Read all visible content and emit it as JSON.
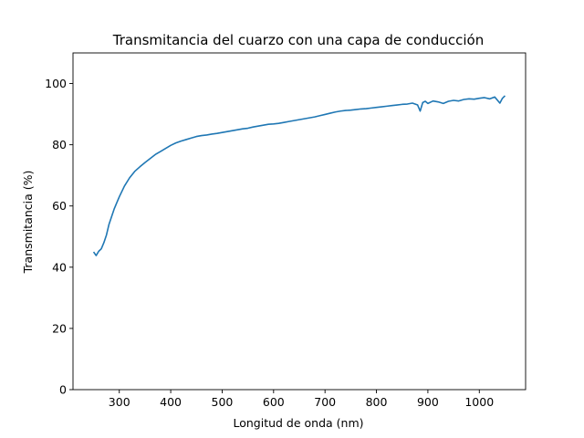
{
  "chart_data": {
    "type": "line",
    "title": "Transmitancia del cuarzo con una capa de conducción",
    "xlabel": "Longitud de onda (nm)",
    "ylabel": "Transmitancia (%)",
    "xlim": [
      210,
      1090
    ],
    "ylim": [
      0,
      110
    ],
    "xticks": [
      300,
      400,
      500,
      600,
      700,
      800,
      900,
      1000
    ],
    "yticks": [
      0,
      20,
      40,
      60,
      80,
      100
    ],
    "grid": false,
    "series_color": "#1f77b4",
    "series": [
      {
        "x": [
          250,
          255,
          260,
          265,
          270,
          275,
          280,
          285,
          290,
          295,
          300,
          310,
          320,
          330,
          340,
          350,
          360,
          370,
          380,
          390,
          400,
          410,
          420,
          430,
          440,
          450,
          460,
          470,
          480,
          490,
          500,
          510,
          520,
          530,
          540,
          550,
          560,
          570,
          580,
          590,
          600,
          610,
          620,
          630,
          640,
          650,
          660,
          670,
          680,
          690,
          700,
          710,
          720,
          730,
          740,
          750,
          760,
          770,
          780,
          790,
          800,
          810,
          820,
          830,
          840,
          850,
          860,
          870,
          880,
          885,
          890,
          895,
          900,
          910,
          920,
          930,
          940,
          950,
          960,
          970,
          980,
          990,
          1000,
          1010,
          1020,
          1030,
          1040,
          1045,
          1050
        ],
        "y": [
          45.0,
          43.8,
          45.2,
          46.0,
          48.0,
          50.5,
          54.0,
          56.5,
          59.0,
          61.0,
          63.0,
          66.5,
          69.2,
          71.3,
          72.8,
          74.2,
          75.5,
          76.8,
          77.8,
          78.8,
          79.8,
          80.6,
          81.2,
          81.7,
          82.2,
          82.7,
          83.0,
          83.2,
          83.5,
          83.7,
          84.0,
          84.3,
          84.6,
          84.9,
          85.2,
          85.4,
          85.8,
          86.1,
          86.4,
          86.7,
          86.8,
          87.0,
          87.3,
          87.6,
          87.9,
          88.2,
          88.5,
          88.8,
          89.1,
          89.5,
          89.9,
          90.3,
          90.7,
          91.0,
          91.2,
          91.3,
          91.5,
          91.7,
          91.8,
          92.0,
          92.2,
          92.4,
          92.6,
          92.8,
          93.0,
          93.2,
          93.3,
          93.6,
          93.0,
          91.0,
          93.8,
          94.2,
          93.5,
          94.3,
          94.0,
          93.5,
          94.2,
          94.5,
          94.3,
          94.8,
          95.0,
          94.9,
          95.2,
          95.4,
          95.0,
          95.6,
          93.6,
          95.2,
          96.0
        ]
      }
    ]
  }
}
